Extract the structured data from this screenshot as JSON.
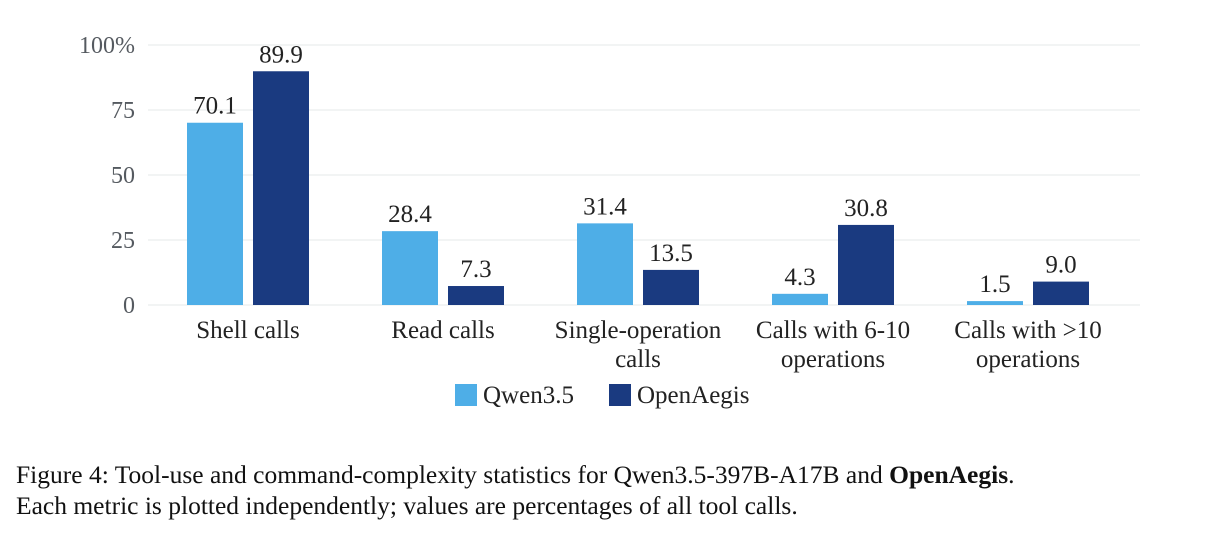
{
  "chart_data": {
    "type": "bar",
    "categories": [
      [
        "Shell calls"
      ],
      [
        "Read calls"
      ],
      [
        "Single-operation",
        "calls"
      ],
      [
        "Calls with 6-10",
        "operations"
      ],
      [
        "Calls with >10",
        "operations"
      ]
    ],
    "series": [
      {
        "name": "Qwen3.5",
        "color": "#4eaee7",
        "values": [
          70.1,
          28.4,
          31.4,
          4.3,
          1.5
        ],
        "labels": [
          "70.1",
          "28.4",
          "31.4",
          "4.3",
          "1.5"
        ]
      },
      {
        "name": "OpenAegis",
        "color": "#1a3a80",
        "values": [
          89.9,
          7.3,
          13.5,
          30.8,
          9.0
        ],
        "labels": [
          "89.9",
          "7.3",
          "13.5",
          "30.8",
          "9.0"
        ]
      }
    ],
    "ylim": [
      0,
      100
    ],
    "yticks": [
      0,
      25,
      50,
      75,
      100
    ],
    "ytick_labels": [
      "0",
      "25",
      "50",
      "75",
      "100%"
    ],
    "grid": true,
    "legend_position": "bottom-center"
  },
  "caption": {
    "line1_prefix": "Figure 4: Tool-use and command-complexity statistics for Qwen3.5-397B-A17B and ",
    "line1_bold": "OpenAegis",
    "line1_suffix": ".",
    "line2": "Each metric is plotted independently; values are percentages of all tool calls."
  }
}
